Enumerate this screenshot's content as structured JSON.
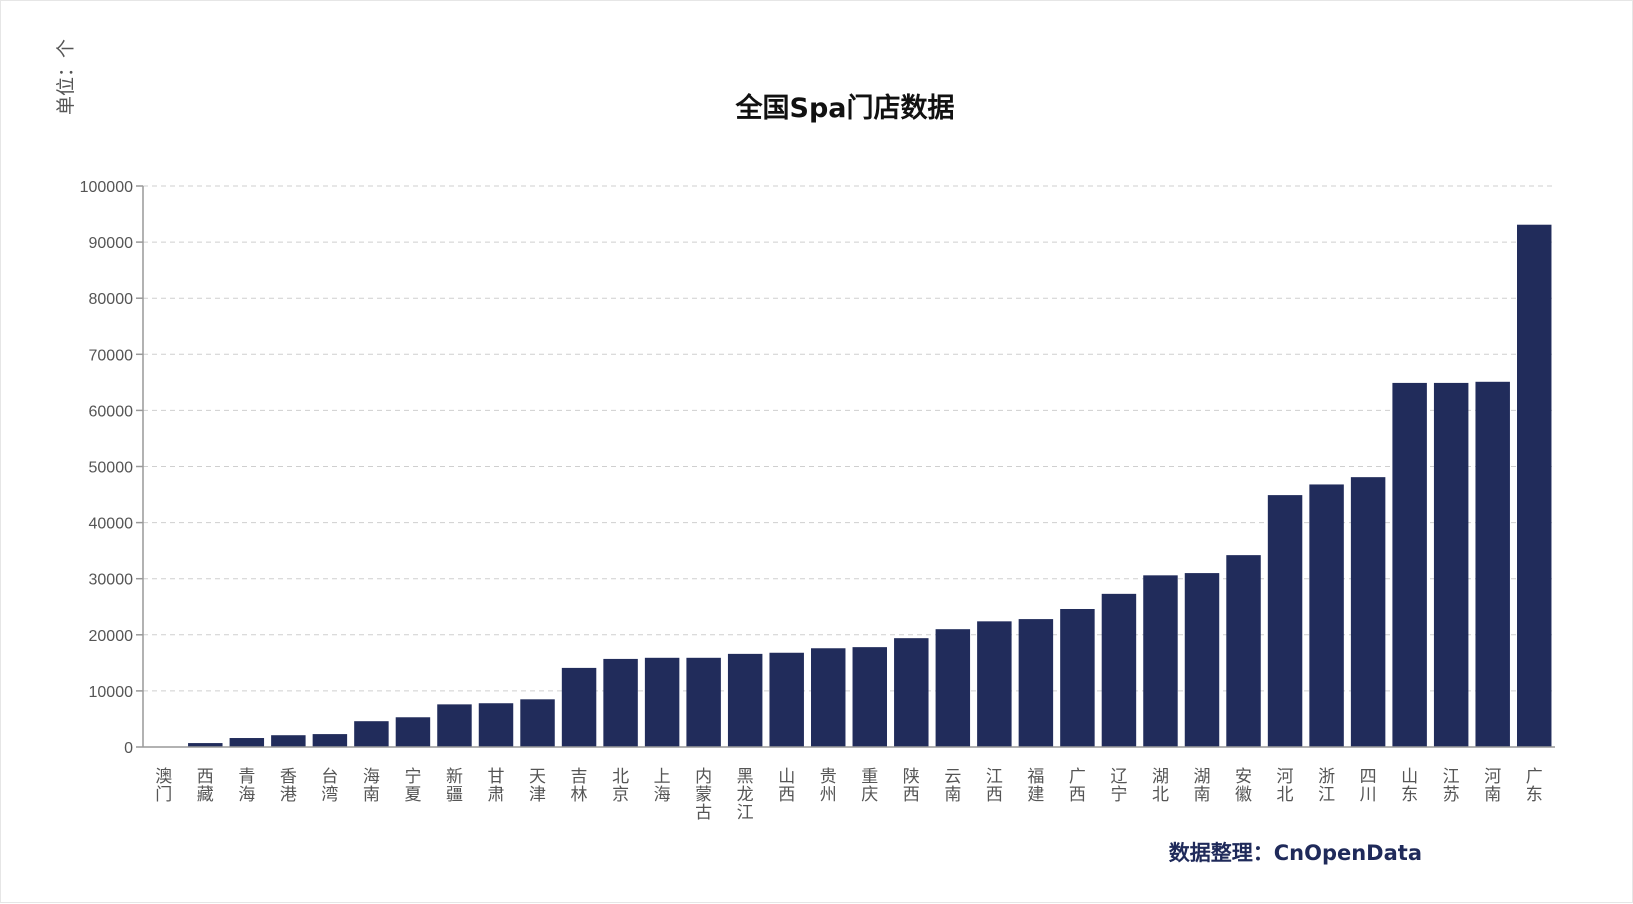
{
  "chart_data": {
    "type": "bar",
    "title": "全国Spa门店数据",
    "unit_label": "单位：个",
    "source": "数据整理：CnOpenData",
    "ylim": [
      0,
      100000
    ],
    "yticks": [
      "0",
      "10000",
      "20000",
      "30000",
      "40000",
      "50000",
      "60000",
      "70000",
      "80000",
      "90000",
      "100000"
    ],
    "grid": true,
    "colors": {
      "bar": "#212c5b"
    },
    "categories": [
      "澳门",
      "西藏",
      "青海",
      "香港",
      "台湾",
      "海南",
      "宁夏",
      "新疆",
      "甘肃",
      "天津",
      "吉林",
      "北京",
      "上海",
      "内蒙古",
      "黑龙江",
      "山西",
      "贵州",
      "重庆",
      "陕西",
      "云南",
      "江西",
      "福建",
      "广西",
      "辽宁",
      "湖北",
      "湖南",
      "安徽",
      "河北",
      "浙江",
      "四川",
      "山东",
      "江苏",
      "河南",
      "广东"
    ],
    "values": [
      50,
      700,
      1600,
      2100,
      2300,
      4600,
      5300,
      7600,
      7800,
      8500,
      14100,
      15700,
      15900,
      15900,
      16600,
      16800,
      17600,
      17800,
      19400,
      21000,
      22400,
      22800,
      24600,
      27300,
      30600,
      31000,
      34200,
      44900,
      46800,
      48100,
      64900,
      64900,
      65100,
      93100
    ]
  }
}
